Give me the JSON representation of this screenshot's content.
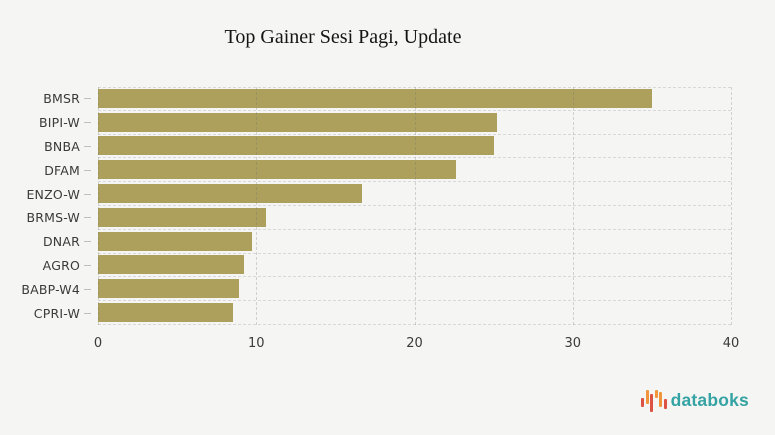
{
  "title": "Top Gainer Sesi Pagi, Update",
  "chart_data": {
    "type": "bar",
    "orientation": "horizontal",
    "title": "Top Gainer Sesi Pagi, Update",
    "categories": [
      "BMSR",
      "BIPI-W",
      "BNBA",
      "DFAM",
      "ENZO-W",
      "BRMS-W",
      "DNAR",
      "AGRO",
      "BABP-W4",
      "CPRI-W"
    ],
    "values": [
      35.0,
      25.2,
      25.0,
      22.6,
      16.7,
      10.6,
      9.7,
      9.2,
      8.9,
      8.5
    ],
    "xlabel": "",
    "ylabel": "",
    "xlim": [
      0,
      40
    ],
    "xticks": [
      0,
      10,
      20,
      30,
      40
    ],
    "grid": true,
    "grid_style": "dashed",
    "bar_color": "#aca05c",
    "background_color": "#f5f5f3",
    "axis_text_color": "#3a3a3a"
  },
  "branding": {
    "logo_text": "databoks",
    "logo_color": "#35a3a3",
    "icon_name": "bar-chart-icon",
    "icon_bars": [
      {
        "color": "#dc5243",
        "h": 9,
        "dy": 2
      },
      {
        "color": "#f0953c",
        "h": 14,
        "dy": -3
      },
      {
        "color": "#dc5243",
        "h": 18,
        "dy": 3
      },
      {
        "color": "#f0953c",
        "h": 8,
        "dy": -6
      },
      {
        "color": "#f0953c",
        "h": 15,
        "dy": -1
      },
      {
        "color": "#dc5243",
        "h": 10,
        "dy": 4
      }
    ]
  }
}
